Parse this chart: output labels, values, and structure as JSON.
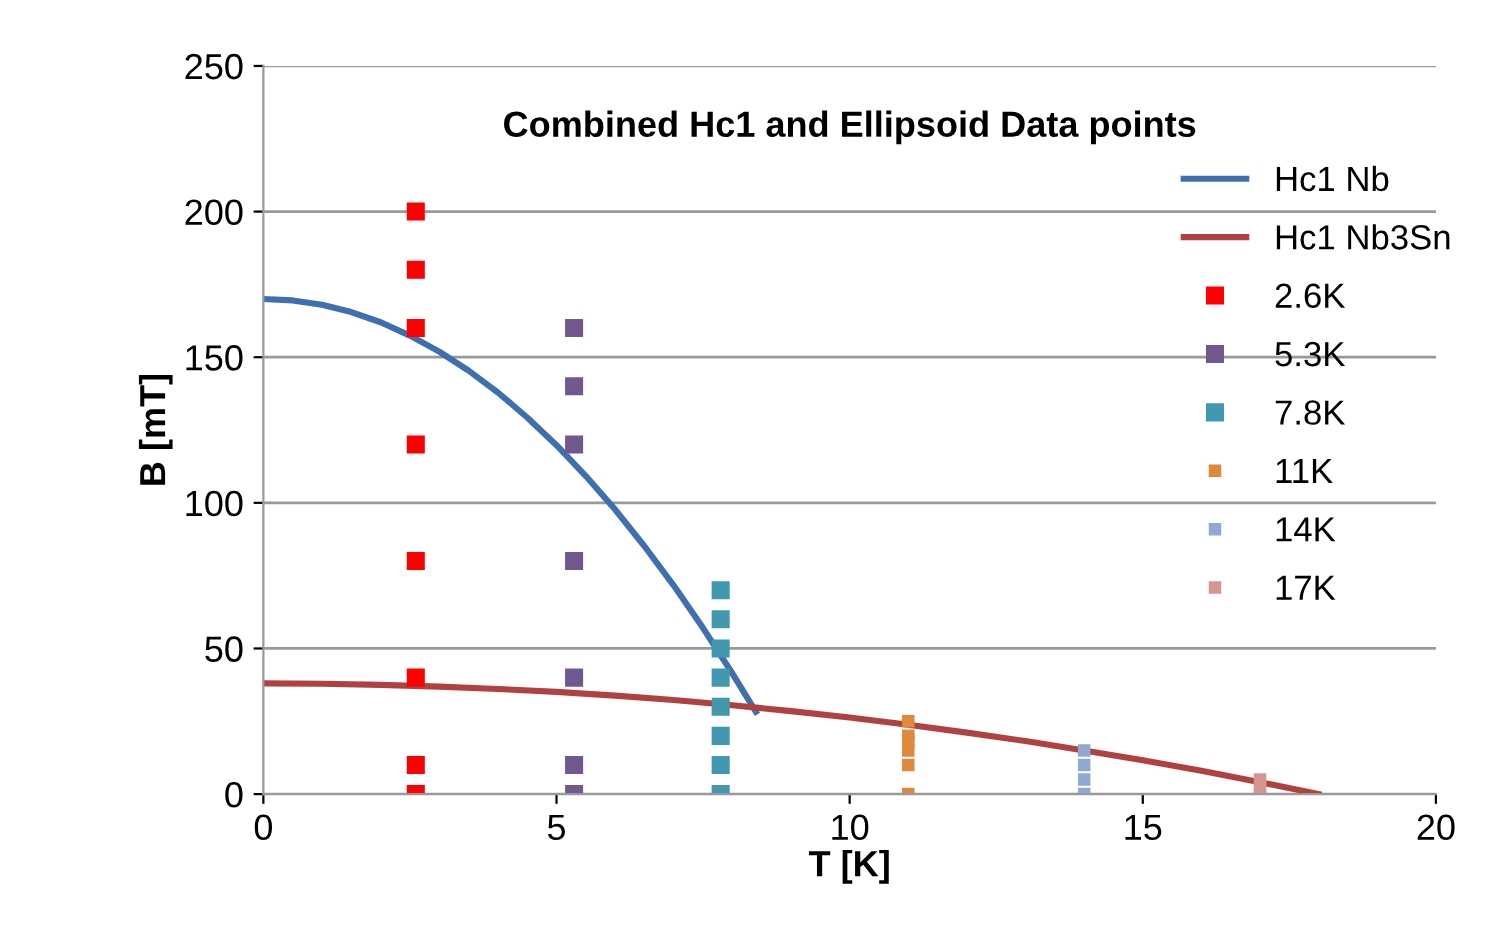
{
  "chart_data": {
    "type": "scatter",
    "title": "Combined Hc1 and Ellipsoid Data points",
    "xlabel": "T [K]",
    "ylabel": "B [mT]",
    "xlim": [
      0,
      20
    ],
    "xticks": [
      0,
      5,
      10,
      15,
      20
    ],
    "ylim": [
      0,
      250
    ],
    "yticks": [
      0,
      50,
      100,
      150,
      200,
      250
    ],
    "grid": "y",
    "legend": "right",
    "series": [
      {
        "name": "Hc1 Nb",
        "type": "line",
        "marker": "none",
        "color": "#3e6fb0",
        "x": [
          0,
          0.5,
          1,
          1.5,
          2,
          2.5,
          3,
          3.5,
          4,
          4.5,
          5,
          5.5,
          6,
          6.5,
          7,
          7.5,
          8,
          8.4
        ],
        "values": [
          170,
          169.5,
          168,
          165.5,
          162,
          157.4,
          151.9,
          145.4,
          137.9,
          129.3,
          119.8,
          109.2,
          97.7,
          85.1,
          71.6,
          57,
          41.4,
          28.3
        ]
      },
      {
        "name": "Hc1 Nb3Sn",
        "type": "line",
        "marker": "none",
        "color": "#b0413e",
        "x": [
          0,
          1,
          2,
          3,
          4,
          5,
          6,
          7,
          8,
          9,
          10,
          11,
          12,
          13,
          14,
          15,
          16,
          17,
          18
        ],
        "values": [
          38,
          37.9,
          37.5,
          36.9,
          36.1,
          35.1,
          33.8,
          32.3,
          30.5,
          28.5,
          26.3,
          23.8,
          21.1,
          18.2,
          15,
          11.6,
          8,
          4.1,
          0
        ]
      },
      {
        "name": "2.6K",
        "marker": "square",
        "color": "#ff0000",
        "x": [
          2.6,
          2.6,
          2.6,
          2.6,
          2.6,
          2.6,
          2.6,
          2.6
        ],
        "values": [
          0,
          10,
          40,
          80,
          120,
          160,
          180,
          200
        ]
      },
      {
        "name": "5.3K",
        "marker": "square",
        "color": "#71588f",
        "x": [
          5.3,
          5.3,
          5.3,
          5.3,
          5.3,
          5.3,
          5.3
        ],
        "values": [
          0,
          10,
          40,
          80,
          120,
          140,
          160
        ]
      },
      {
        "name": "7.8K",
        "marker": "square",
        "color": "#4198af",
        "x": [
          7.8,
          7.8,
          7.8,
          7.8,
          7.8,
          7.8,
          7.8,
          7.8
        ],
        "values": [
          0,
          10,
          20,
          30,
          40,
          50,
          60,
          70
        ]
      },
      {
        "name": "11K",
        "marker": "square",
        "color": "#e0893c",
        "x": [
          11,
          11,
          11,
          11,
          11,
          11
        ],
        "values": [
          0,
          10,
          15,
          18,
          20,
          25
        ]
      },
      {
        "name": "14K",
        "marker": "square",
        "color": "#8fa8d4",
        "x": [
          14,
          14,
          14,
          14
        ],
        "values": [
          0,
          5,
          10,
          15
        ]
      },
      {
        "name": "17K",
        "marker": "square",
        "color": "#d59692",
        "x": [
          17,
          17,
          17
        ],
        "values": [
          0,
          2.5,
          5
        ]
      }
    ]
  }
}
